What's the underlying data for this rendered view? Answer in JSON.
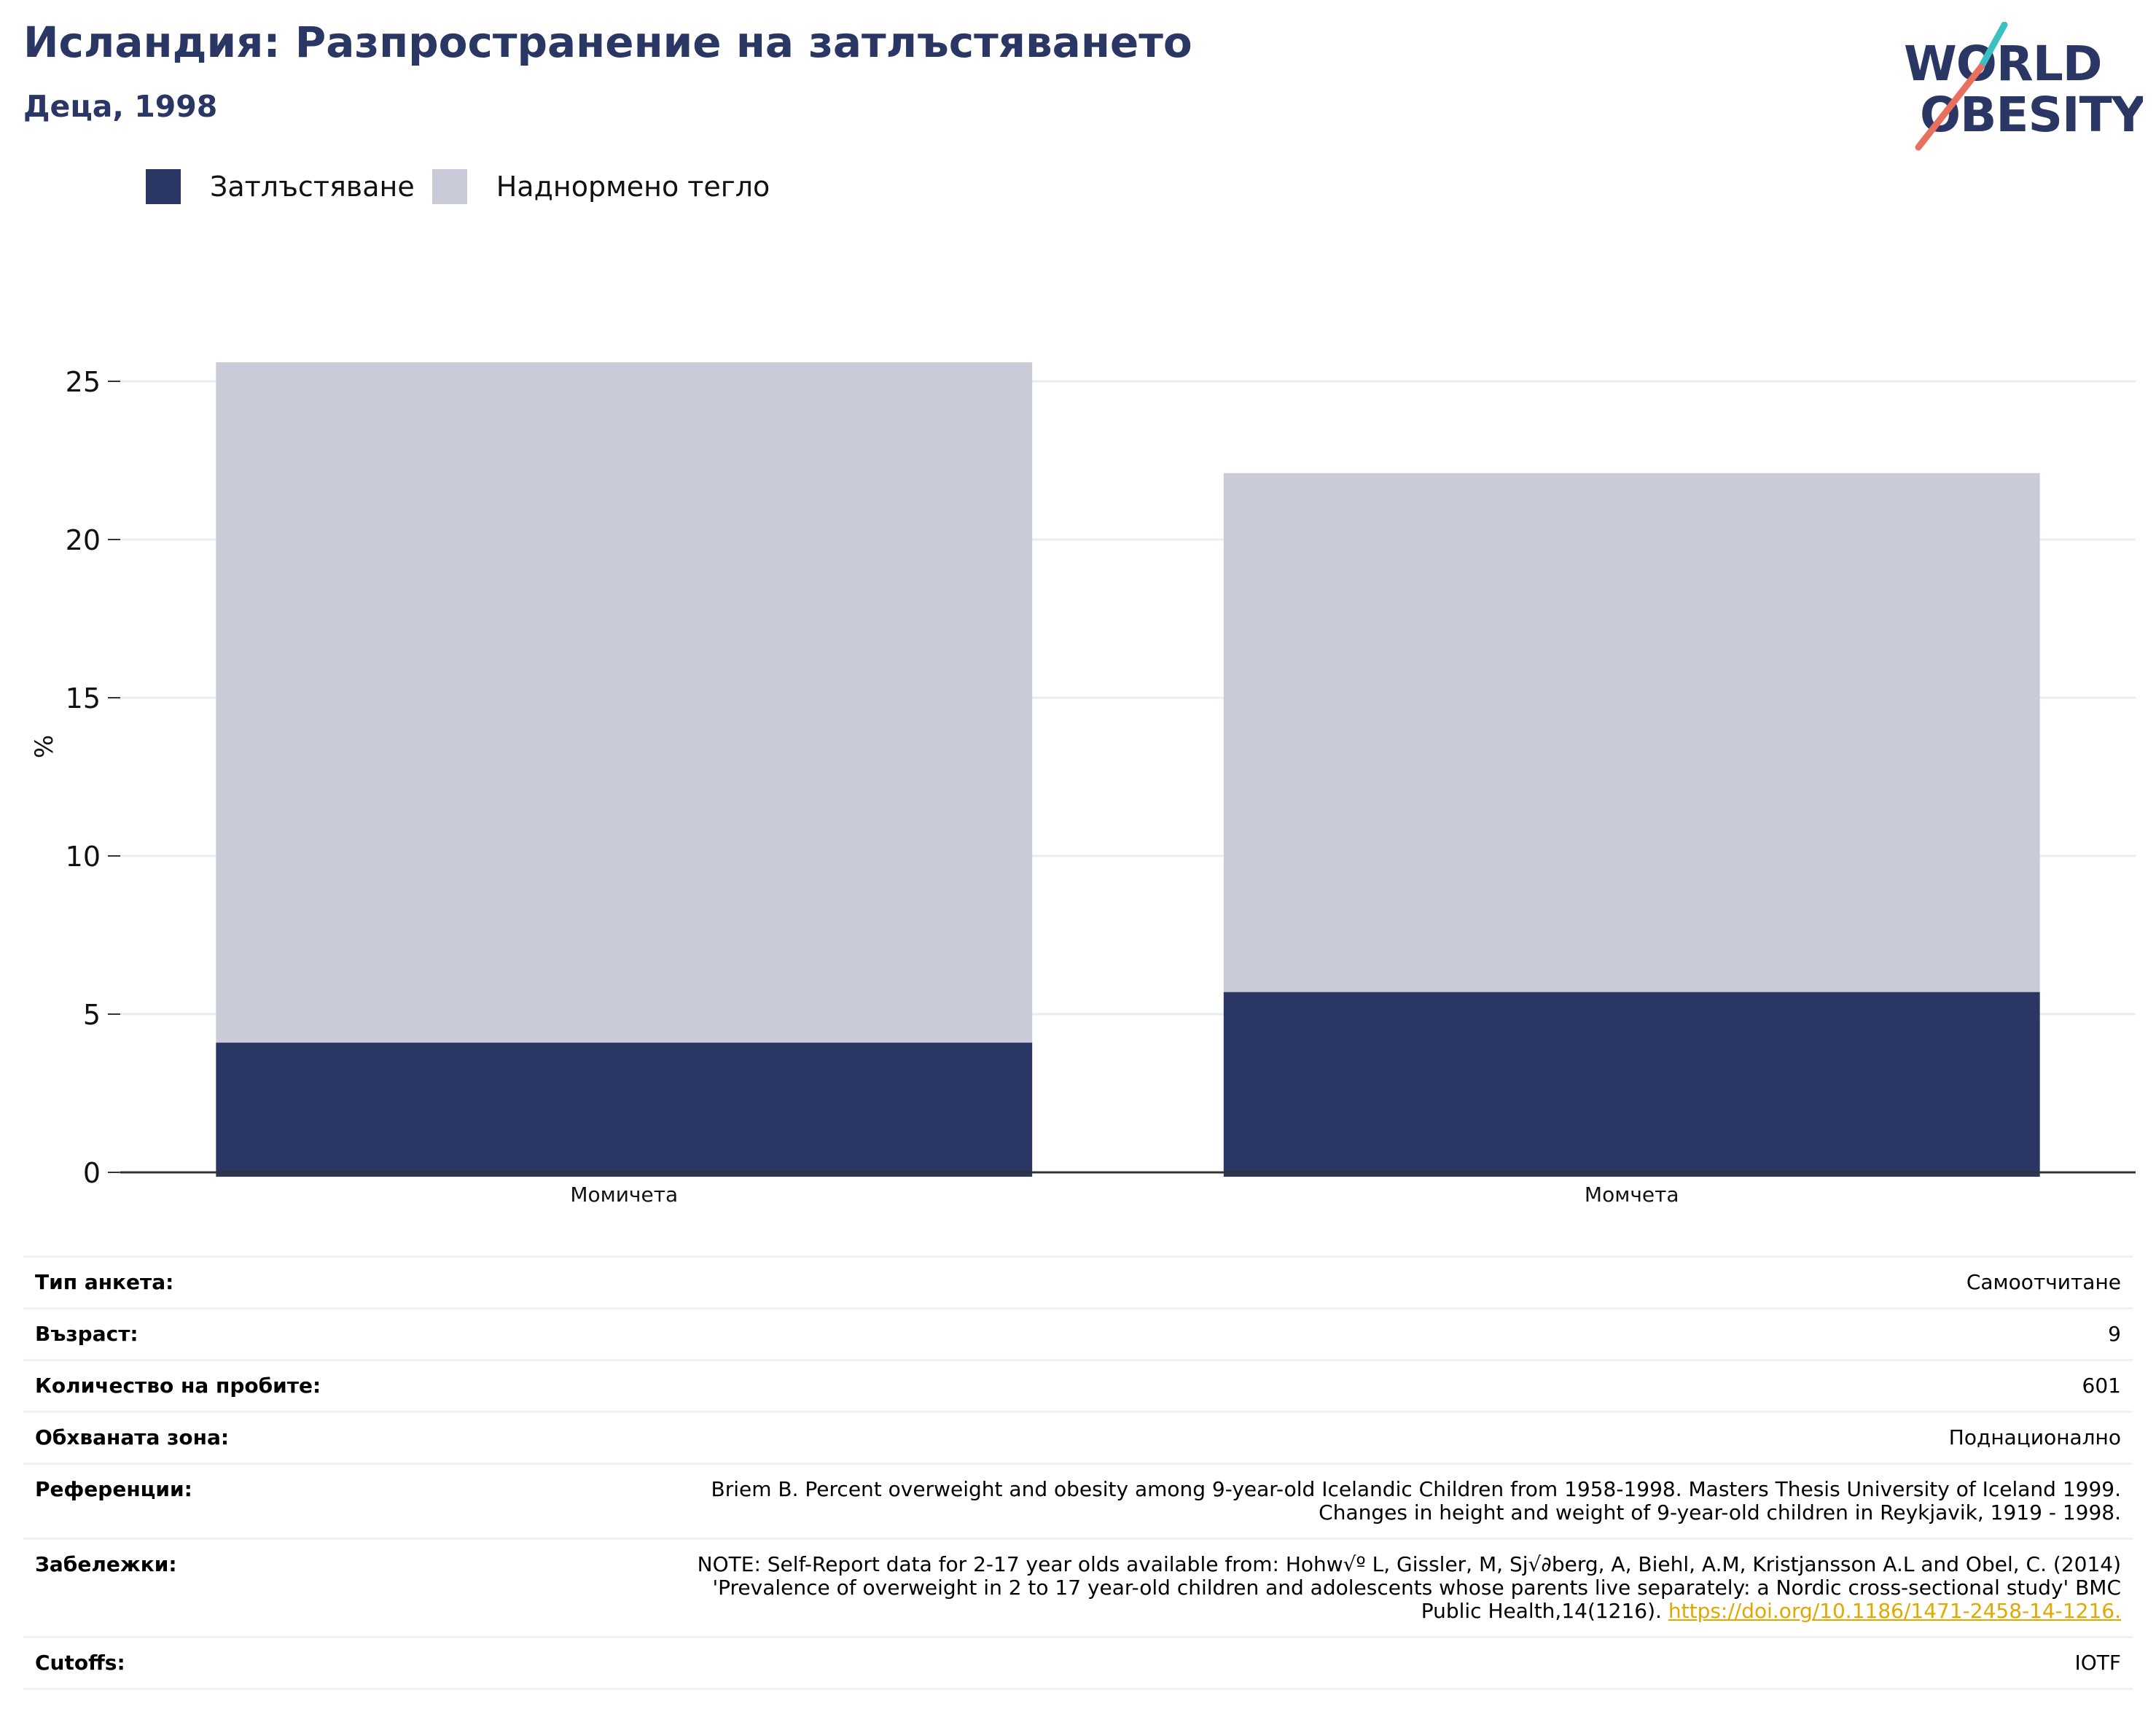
{
  "header": {
    "title": "Исландия: Разпространение на затлъстяването",
    "subtitle": "Деца, 1998"
  },
  "logo": {
    "line1": "WORLD",
    "line2": "OBESITY",
    "name": "world-obesity-logo"
  },
  "colors": {
    "obesity": "#2a3663",
    "overweight": "#c9ccd8",
    "title": "#2a3663",
    "link": "#e0a800",
    "logo_teal": "#3bbfc1",
    "logo_coral": "#e8705f"
  },
  "legend": [
    {
      "label": "Затлъстяване",
      "color": "#2a3663"
    },
    {
      "label": "Наднормено тегло",
      "color": "#c9ccd8"
    }
  ],
  "chart_data": {
    "type": "bar",
    "stacked": true,
    "categories": [
      "Момичета",
      "Момчета"
    ],
    "series": [
      {
        "name": "Затлъстяване",
        "values": [
          4.1,
          5.7
        ]
      },
      {
        "name": "Наднормено тегло",
        "values": [
          21.5,
          16.4
        ]
      }
    ],
    "ylabel": "%",
    "ylim": [
      0,
      27
    ],
    "yticks": [
      0,
      5,
      10,
      15,
      20,
      25
    ],
    "grid": true,
    "legend_position": "top-left"
  },
  "meta": {
    "survey_label": "Тип анкета:",
    "survey_value": "Самоотчитане",
    "age_label": "Възраст:",
    "age_value": "9",
    "sample_label": "Количество на пробите:",
    "sample_value": "601",
    "area_label": "Обхваната зона:",
    "area_value": "Поднационално",
    "refs_label": "Референции:",
    "refs_line1": "Briem B. Percent overweight and obesity among 9-year-old Icelandic Children from 1958-1998. Masters Thesis University of Iceland 1999.",
    "refs_line2": "Changes in height and weight of 9-year-old children in Reykjavik, 1919 - 1998.",
    "notes_label": "Забележки:",
    "notes_line1": "NOTE: Self-Report data for 2-17 year olds available from: Hohw√º L, Gissler, M, Sj√∂berg, A, Biehl, A.M, Kristjansson A.L and Obel, C. (2014)",
    "notes_line2": "'Prevalence of overweight in 2 to 17 year-old children and adolescents whose parents live separately: a Nordic cross-sectional study' BMC",
    "notes_line3": "Public Health,14(1216).",
    "notes_link": "https://doi.org/10.1186/1471-2458-14-1216.",
    "cutoffs_label": "Cutoffs:",
    "cutoffs_value": "IOTF"
  }
}
